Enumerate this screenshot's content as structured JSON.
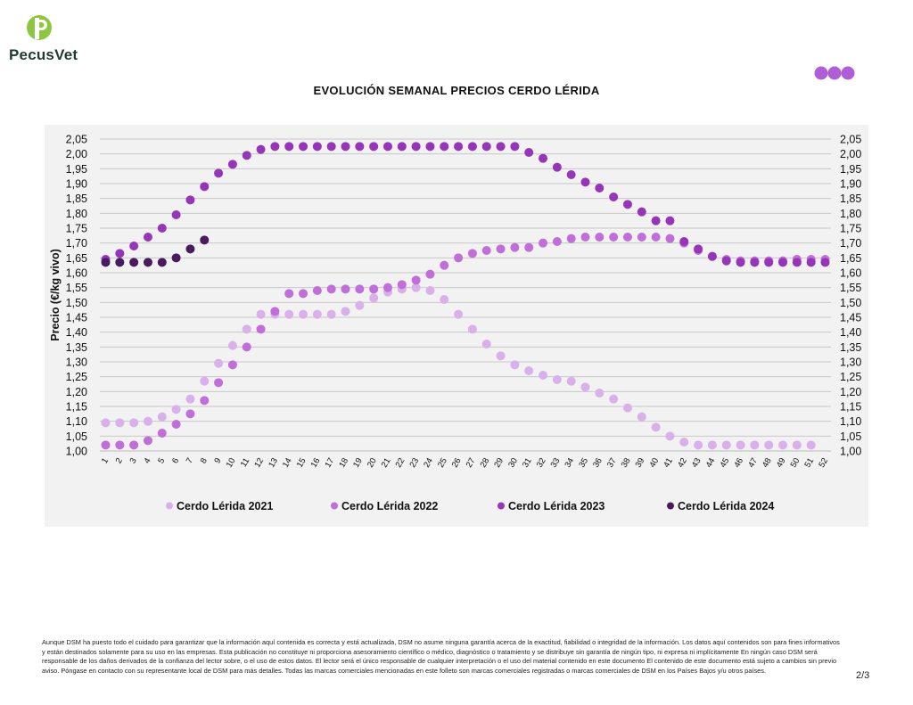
{
  "brand": {
    "name": "PecusVet",
    "color": "#8dc63f",
    "text_color": "#1f3a2e"
  },
  "header_dots": {
    "colors": [
      "#b05ed6",
      "#b05ed6",
      "#b05ed6"
    ]
  },
  "chart_data": {
    "type": "scatter",
    "title": "EVOLUCIÓN SEMANAL PRECIOS CERDO LÉRIDA",
    "ylabel": "Precio (€/kg vivo)",
    "xlabel": "",
    "ylim": [
      1.0,
      2.05
    ],
    "yticks": [
      "1,00",
      "1,05",
      "1,10",
      "1,15",
      "1,20",
      "1,25",
      "1,30",
      "1,35",
      "1,40",
      "1,45",
      "1,50",
      "1,55",
      "1,60",
      "1,65",
      "1,70",
      "1,75",
      "1,80",
      "1,85",
      "1,90",
      "1,95",
      "2,00",
      "2,05"
    ],
    "secondary_y_axis": true,
    "categories": [
      "1",
      "2",
      "3",
      "4",
      "5",
      "6",
      "7",
      "8",
      "9",
      "10",
      "11",
      "12",
      "13",
      "14",
      "15",
      "16",
      "17",
      "18",
      "19",
      "20",
      "21",
      "22",
      "23",
      "24",
      "25",
      "26",
      "27",
      "28",
      "29",
      "30",
      "31",
      "32",
      "33",
      "34",
      "35",
      "36",
      "37",
      "38",
      "39",
      "40",
      "41",
      "42",
      "43",
      "44",
      "45",
      "46",
      "47",
      "48",
      "49",
      "50",
      "51",
      "52"
    ],
    "grid": true,
    "legend_position": "bottom",
    "series": [
      {
        "name": "Cerdo Lérida 2021",
        "color": "#d9b0ea",
        "values": [
          1.095,
          1.095,
          1.095,
          1.1,
          1.115,
          1.14,
          1.175,
          1.235,
          1.295,
          1.355,
          1.41,
          1.46,
          1.46,
          1.46,
          1.46,
          1.46,
          1.46,
          1.47,
          1.49,
          1.515,
          1.535,
          1.545,
          1.55,
          1.54,
          1.51,
          1.46,
          1.41,
          1.36,
          1.32,
          1.29,
          1.27,
          1.255,
          1.24,
          1.235,
          1.215,
          1.195,
          1.175,
          1.145,
          1.115,
          1.08,
          1.05,
          1.03,
          1.02,
          1.02,
          1.02,
          1.02,
          1.02,
          1.02,
          1.02,
          1.02,
          1.02,
          null
        ]
      },
      {
        "name": "Cerdo Lérida 2022",
        "color": "#c06ed8",
        "values": [
          1.02,
          1.02,
          1.02,
          1.035,
          1.06,
          1.09,
          1.125,
          1.17,
          1.23,
          1.29,
          1.35,
          1.41,
          1.47,
          1.53,
          1.53,
          1.54,
          1.545,
          1.545,
          1.545,
          1.545,
          1.55,
          1.56,
          1.575,
          1.595,
          1.625,
          1.65,
          1.665,
          1.675,
          1.68,
          1.685,
          1.685,
          1.7,
          1.705,
          1.715,
          1.72,
          1.72,
          1.72,
          1.72,
          1.72,
          1.72,
          1.715,
          1.7,
          1.675,
          1.655,
          1.645,
          1.64,
          1.64,
          1.64,
          1.64,
          1.645,
          1.645,
          1.645
        ]
      },
      {
        "name": "Cerdo Lérida 2023",
        "color": "#9535b8",
        "values": [
          1.645,
          1.665,
          1.69,
          1.72,
          1.75,
          1.795,
          1.845,
          1.89,
          1.935,
          1.965,
          1.995,
          2.015,
          2.025,
          2.025,
          2.025,
          2.025,
          2.025,
          2.025,
          2.025,
          2.025,
          2.025,
          2.025,
          2.025,
          2.025,
          2.025,
          2.025,
          2.025,
          2.025,
          2.025,
          2.025,
          2.005,
          1.985,
          1.955,
          1.93,
          1.905,
          1.885,
          1.855,
          1.83,
          1.805,
          1.775,
          1.775,
          1.705,
          1.68,
          1.655,
          1.64,
          1.635,
          1.635,
          1.635,
          1.635,
          1.635,
          1.635,
          1.635
        ]
      },
      {
        "name": "Cerdo Lérida 2024",
        "color": "#4a1a5e",
        "values": [
          1.635,
          1.635,
          1.635,
          1.635,
          1.635,
          1.65,
          1.68,
          1.71,
          null,
          null,
          null,
          null,
          null,
          null,
          null,
          null,
          null,
          null,
          null,
          null,
          null,
          null,
          null,
          null,
          null,
          null,
          null,
          null,
          null,
          null,
          null,
          null,
          null,
          null,
          null,
          null,
          null,
          null,
          null,
          null,
          null,
          null,
          null,
          null,
          null,
          null,
          null,
          null,
          null,
          null,
          null,
          null
        ]
      }
    ]
  },
  "disclaimer": "Aunque DSM ha puesto todo el cuidado para garantizar que la información aquí contenida es correcta y está actualizada, DSM no asume ninguna garantía acerca de la exactitud, fiabilidad o integridad de la información. Los datos aquí contenidos son para fines informativos y están destinados solamente para su uso en las empresas. Esta publicación no constituye ni proporciona asesoramiento científico o médico, diagnóstico o tratamiento y se distribuye sin garantía de ningún tipo, ni expresa ni implícitamente En ningún caso DSM será responsable de los daños derivados de la confianza del lector sobre, o el uso de estos datos. El lector será el único responsable de cualquier interpretación o el uso del material contenido en este documento El contenido de este documento está sujeto a cambios sin previo aviso. Póngase en contacto con su representante local de DSM para más detalles. Todas las marcas comerciales mencionadas en este folleto son marcas comerciales registradas o marcas comerciales de DSM en los Países Bajos y/u otros países.",
  "page_number": "2/3"
}
